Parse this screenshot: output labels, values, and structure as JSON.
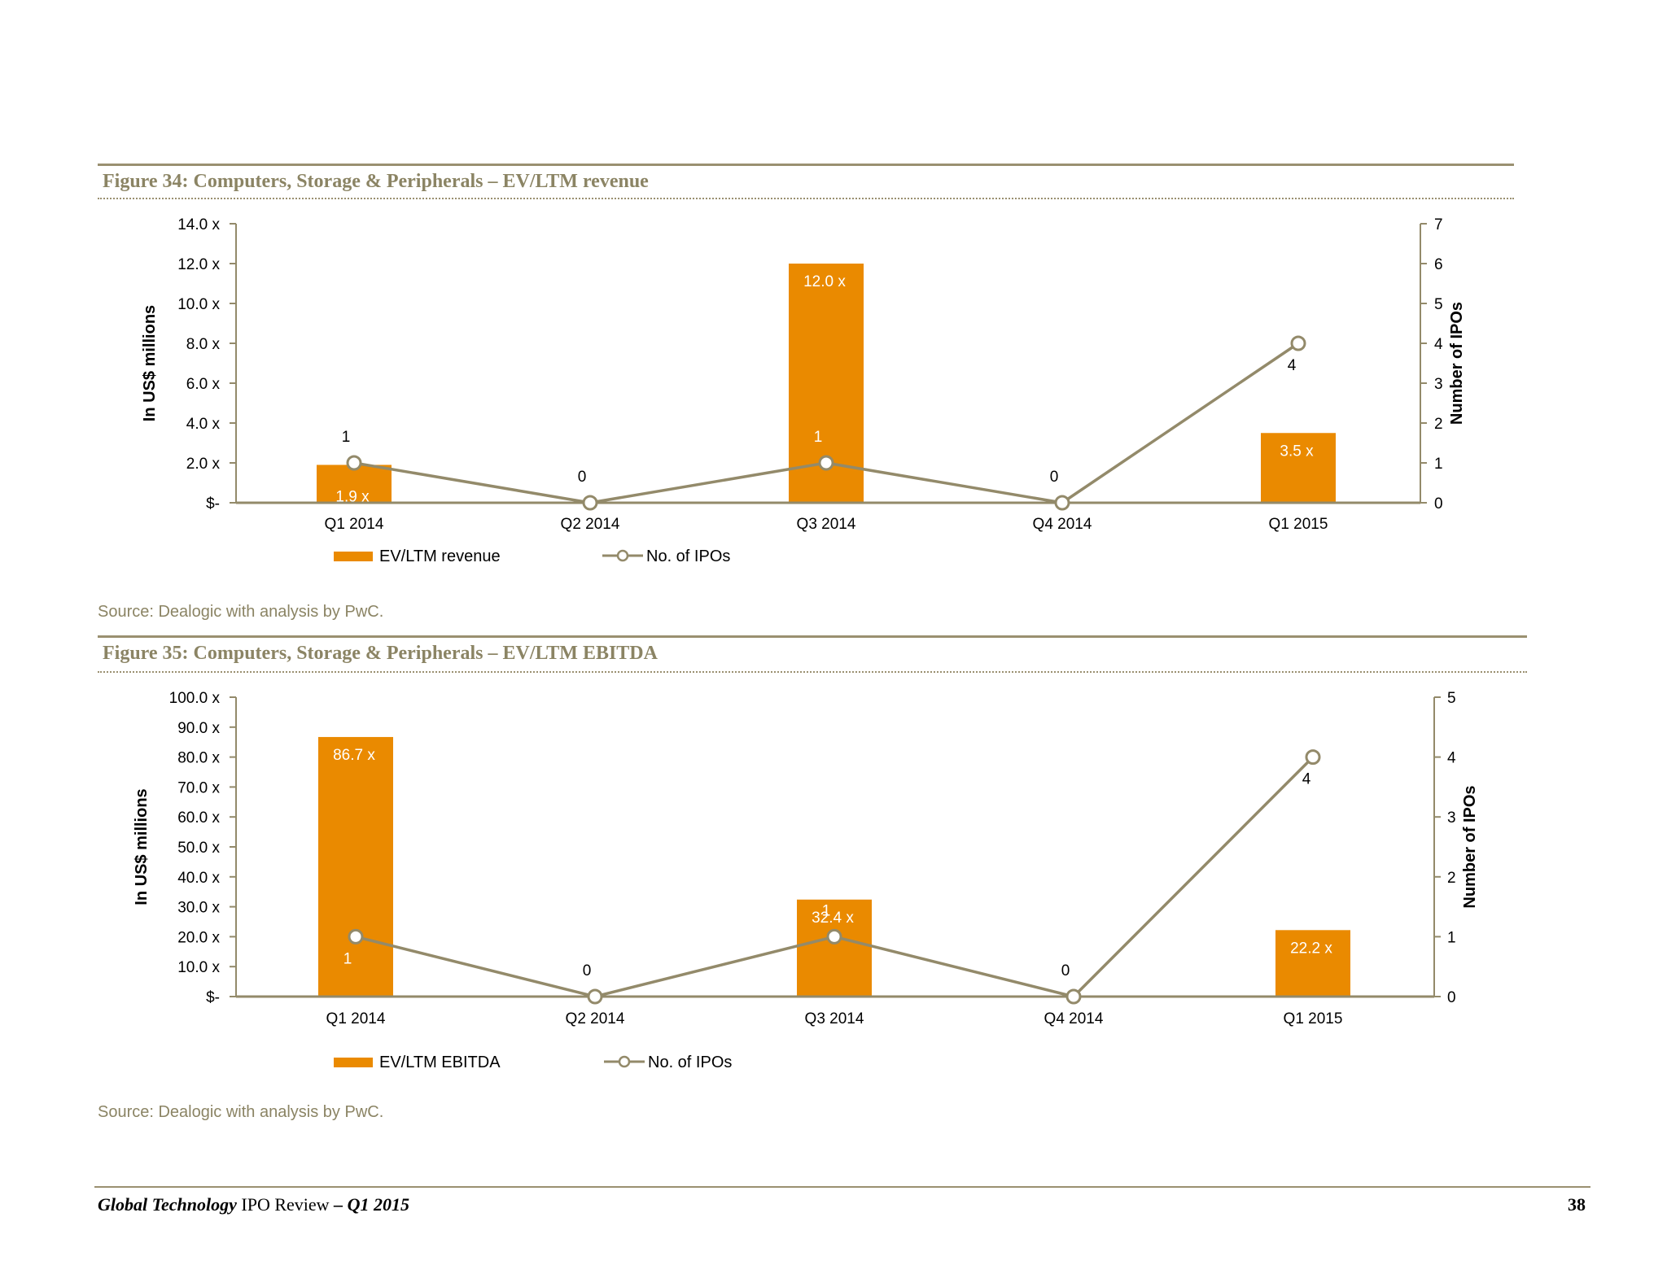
{
  "figures": [
    {
      "title": "Figure 34: Computers, Storage & Peripherals – EV/LTM revenue",
      "source": "Source: Dealogic with analysis by PwC."
    },
    {
      "title": "Figure 35: Computers, Storage & Peripherals – EV/LTM EBITDA",
      "source": "Source: Dealogic with analysis by PwC."
    }
  ],
  "footer": {
    "brand": "Global Technology",
    "middle": " IPO Review ",
    "period": "– Q1 2015",
    "page": "38"
  },
  "colors": {
    "bar": "#ea8a00",
    "line": "#938a6a",
    "axis": "#938a6a",
    "bar_label": "#ffffff"
  },
  "chart_data": [
    {
      "type": "bar",
      "categories": [
        "Q1 2014",
        "Q2 2014",
        "Q3 2014",
        "Q4 2014",
        "Q1 2015"
      ],
      "series": [
        {
          "name": "EV/LTM revenue",
          "type": "bar",
          "axis": "left",
          "values": [
            1.9,
            null,
            12.0,
            null,
            3.5
          ],
          "labels": [
            "1.9 x",
            "",
            "12.0 x",
            "",
            "3.5 x"
          ]
        },
        {
          "name": "No. of IPOs",
          "type": "line",
          "axis": "right",
          "values": [
            1,
            0,
            1,
            0,
            4
          ],
          "labels": [
            "1",
            "0",
            "1",
            "0",
            "4"
          ]
        }
      ],
      "ylabel": "In US$ millions",
      "y2label": "Number of IPOs",
      "ylim": [
        0,
        14
      ],
      "y2lim": [
        0,
        7
      ],
      "yticks": [
        "$-",
        "2.0 x",
        "4.0 x",
        "6.0 x",
        "8.0 x",
        "10.0 x",
        "12.0 x",
        "14.0 x"
      ],
      "y2ticks": [
        "0",
        "1",
        "2",
        "3",
        "4",
        "5",
        "6",
        "7"
      ],
      "legend": [
        "EV/LTM revenue",
        "No. of IPOs"
      ],
      "legend_position": "bottom",
      "grid": false
    },
    {
      "type": "bar",
      "categories": [
        "Q1 2014",
        "Q2 2014",
        "Q3 2014",
        "Q4 2014",
        "Q1 2015"
      ],
      "series": [
        {
          "name": "EV/LTM EBITDA",
          "type": "bar",
          "axis": "left",
          "values": [
            86.7,
            null,
            32.4,
            null,
            22.2
          ],
          "labels": [
            "86.7 x",
            "",
            "32.4 x",
            "",
            "22.2 x"
          ]
        },
        {
          "name": "No. of IPOs",
          "type": "line",
          "axis": "right",
          "values": [
            1,
            0,
            1,
            0,
            4
          ],
          "labels": [
            "1",
            "0",
            "1",
            "0",
            "4"
          ]
        }
      ],
      "ylabel": "In US$ millions",
      "y2label": "Number of IPOs",
      "ylim": [
        0,
        100
      ],
      "y2lim": [
        0,
        5
      ],
      "yticks": [
        "$-",
        "10.0 x",
        "20.0 x",
        "30.0 x",
        "40.0 x",
        "50.0 x",
        "60.0 x",
        "70.0 x",
        "80.0 x",
        "90.0 x",
        "100.0 x"
      ],
      "y2ticks": [
        "0",
        "1",
        "2",
        "3",
        "4",
        "5"
      ],
      "legend": [
        "EV/LTM EBITDA",
        "No. of IPOs"
      ],
      "legend_position": "bottom",
      "grid": false
    }
  ]
}
